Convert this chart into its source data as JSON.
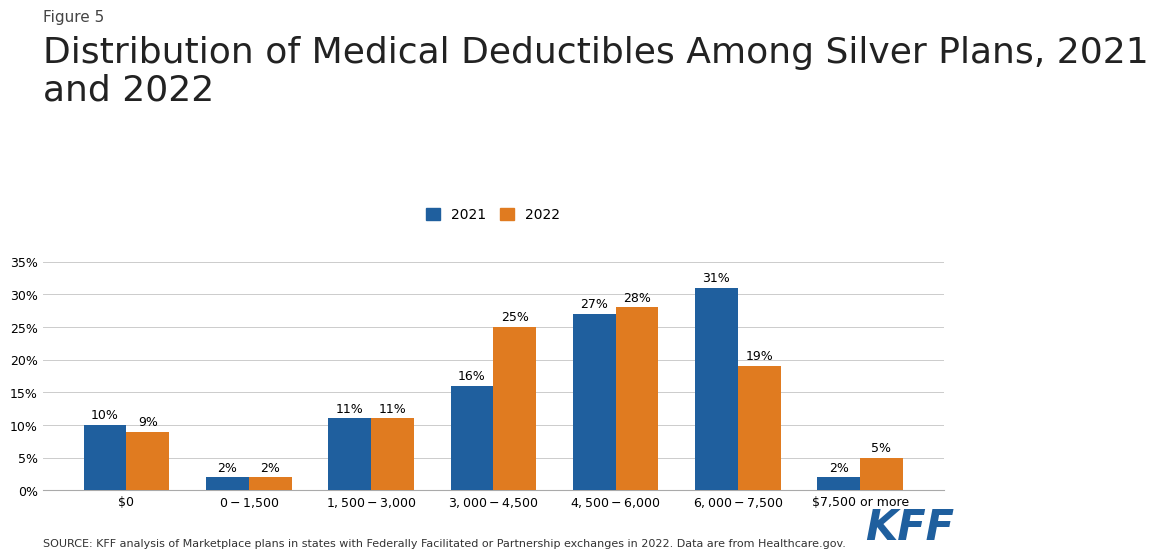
{
  "figure_label": "Figure 5",
  "title": "Distribution of Medical Deductibles Among Silver Plans, 2021\nand 2022",
  "categories": [
    "$0",
    "$0-$1,500",
    "$1,500-$3,000",
    "$3,000-$4,500",
    "$4,500-$6,000",
    "$6,000-$7,500",
    "$7,500 or more"
  ],
  "values_2021": [
    10,
    2,
    11,
    16,
    27,
    31,
    2
  ],
  "values_2022": [
    9,
    2,
    11,
    25,
    28,
    19,
    5
  ],
  "color_2021": "#1f5f9e",
  "color_2022": "#e07b20",
  "legend_labels": [
    "2021",
    "2022"
  ],
  "ylim": [
    0,
    37
  ],
  "yticks": [
    0,
    5,
    10,
    15,
    20,
    25,
    30,
    35
  ],
  "ytick_labels": [
    "0%",
    "5%",
    "10%",
    "15%",
    "20%",
    "25%",
    "30%",
    "35%"
  ],
  "source_text": "SOURCE: KFF analysis of Marketplace plans in states with Federally Facilitated or Partnership exchanges in 2022. Data are from Healthcare.gov.",
  "kff_color": "#1f5f9e",
  "background_color": "#ffffff",
  "title_fontsize": 26,
  "figure_label_fontsize": 11,
  "bar_width": 0.35,
  "annotation_fontsize": 9,
  "axis_label_fontsize": 9,
  "legend_fontsize": 10,
  "source_fontsize": 8
}
